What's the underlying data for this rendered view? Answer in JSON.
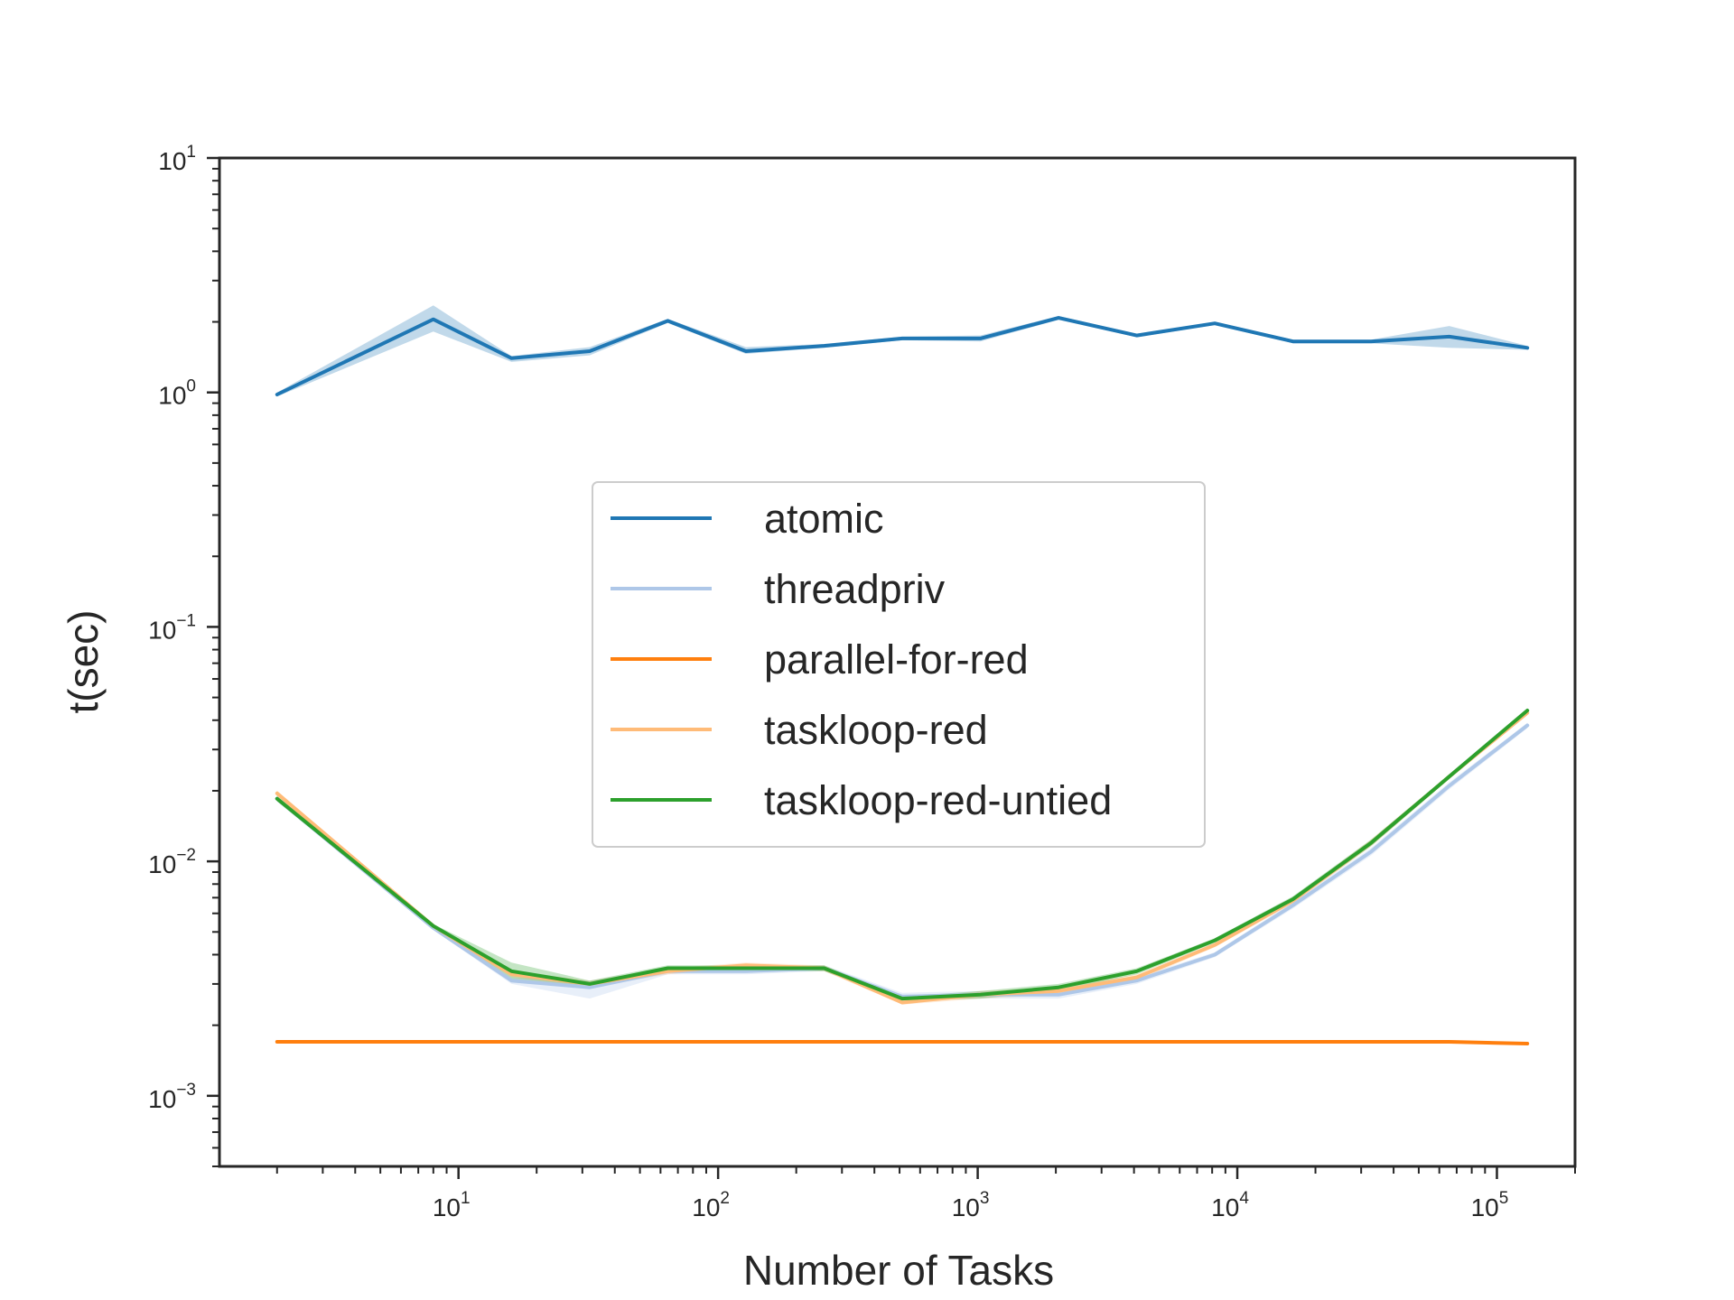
{
  "chart_data": {
    "type": "line",
    "xlabel": "Number of Tasks",
    "ylabel": "t(sec)",
    "xscale": "log",
    "yscale": "log",
    "xlim": [
      1.2,
      200000
    ],
    "ylim": [
      0.0005,
      10
    ],
    "x_ticks": [
      {
        "base": "10",
        "exp": "1",
        "value": 10
      },
      {
        "base": "10",
        "exp": "2",
        "value": 100
      },
      {
        "base": "10",
        "exp": "3",
        "value": 1000
      },
      {
        "base": "10",
        "exp": "4",
        "value": 10000
      },
      {
        "base": "10",
        "exp": "5",
        "value": 100000
      }
    ],
    "y_ticks": [
      {
        "base": "10",
        "exp": "1",
        "value": 10
      },
      {
        "base": "10",
        "exp": "0",
        "value": 1
      },
      {
        "base": "10",
        "exp": "−1",
        "value": 0.1
      },
      {
        "base": "10",
        "exp": "−2",
        "value": 0.01
      },
      {
        "base": "10",
        "exp": "−3",
        "value": 0.001
      }
    ],
    "grid": false,
    "legend_position": "center",
    "x": [
      2,
      8,
      16,
      32,
      64,
      128,
      256,
      512,
      1024,
      2048,
      4096,
      8192,
      16384,
      32768,
      65536,
      131072
    ],
    "series": [
      {
        "name": "atomic",
        "color": "#1f77b4",
        "values": [
          0.98,
          2.05,
          1.4,
          1.5,
          2.02,
          1.5,
          1.58,
          1.7,
          1.7,
          2.08,
          1.75,
          1.97,
          1.65,
          1.65,
          1.73,
          1.55
        ],
        "band_low": [
          0.96,
          1.82,
          1.35,
          1.44,
          1.98,
          1.46,
          1.55,
          1.67,
          1.65,
          2.04,
          1.72,
          1.94,
          1.62,
          1.62,
          1.55,
          1.52
        ],
        "band_high": [
          1.0,
          2.35,
          1.43,
          1.56,
          2.06,
          1.56,
          1.61,
          1.73,
          1.75,
          2.12,
          1.78,
          2.0,
          1.68,
          1.68,
          1.92,
          1.58
        ]
      },
      {
        "name": "threadpriv",
        "color": "#aec7e8",
        "values": [
          0.0185,
          0.0052,
          0.0031,
          0.0029,
          0.0034,
          0.0034,
          0.0035,
          0.00265,
          0.0027,
          0.0027,
          0.0031,
          0.004,
          0.0065,
          0.011,
          0.021,
          0.038
        ],
        "band_low": [
          0.018,
          0.0051,
          0.003,
          0.0026,
          0.0033,
          0.0033,
          0.0034,
          0.00255,
          0.0026,
          0.0026,
          0.003,
          0.0039,
          0.0063,
          0.0106,
          0.0203,
          0.037
        ],
        "band_high": [
          0.019,
          0.0053,
          0.0032,
          0.0031,
          0.0035,
          0.0035,
          0.0036,
          0.00275,
          0.0028,
          0.0028,
          0.0032,
          0.0041,
          0.0067,
          0.0114,
          0.0217,
          0.039
        ]
      },
      {
        "name": "parallel-for-red",
        "color": "#ff7f0e",
        "values": [
          0.0017,
          0.0017,
          0.0017,
          0.0017,
          0.0017,
          0.0017,
          0.0017,
          0.0017,
          0.0017,
          0.0017,
          0.0017,
          0.0017,
          0.0017,
          0.0017,
          0.0017,
          0.00167
        ],
        "band_low": [
          0.00169,
          0.00169,
          0.00169,
          0.00169,
          0.00169,
          0.00169,
          0.00169,
          0.00169,
          0.00169,
          0.00169,
          0.00169,
          0.00169,
          0.00169,
          0.00169,
          0.00169,
          0.00166
        ],
        "band_high": [
          0.00171,
          0.00171,
          0.00171,
          0.00171,
          0.00171,
          0.00171,
          0.00171,
          0.00171,
          0.00171,
          0.00171,
          0.00171,
          0.00171,
          0.00171,
          0.00171,
          0.00171,
          0.00168
        ]
      },
      {
        "name": "taskloop-red",
        "color": "#ffbb78",
        "values": [
          0.0195,
          0.0053,
          0.0033,
          0.003,
          0.0034,
          0.0036,
          0.0035,
          0.0025,
          0.0027,
          0.0028,
          0.0032,
          0.0044,
          0.0068,
          0.012,
          0.023,
          0.043
        ],
        "band_low": [
          0.019,
          0.0052,
          0.0032,
          0.0029,
          0.0033,
          0.0035,
          0.0034,
          0.00245,
          0.0026,
          0.0027,
          0.0031,
          0.0043,
          0.0066,
          0.0116,
          0.0225,
          0.042
        ],
        "band_high": [
          0.02,
          0.0054,
          0.0034,
          0.0031,
          0.0035,
          0.0037,
          0.0036,
          0.00255,
          0.0028,
          0.0029,
          0.0033,
          0.0045,
          0.007,
          0.0124,
          0.0235,
          0.044
        ]
      },
      {
        "name": "taskloop-red-untied",
        "color": "#2ca02c",
        "values": [
          0.0185,
          0.0053,
          0.0034,
          0.003,
          0.0035,
          0.0035,
          0.0035,
          0.0026,
          0.0027,
          0.0029,
          0.0034,
          0.0046,
          0.0069,
          0.012,
          0.023,
          0.044
        ],
        "band_low": [
          0.018,
          0.0052,
          0.0031,
          0.0029,
          0.0034,
          0.0034,
          0.0034,
          0.00255,
          0.0026,
          0.0028,
          0.0033,
          0.0045,
          0.0067,
          0.0116,
          0.0225,
          0.043
        ],
        "band_high": [
          0.019,
          0.0054,
          0.0037,
          0.0031,
          0.0036,
          0.0036,
          0.0036,
          0.00265,
          0.0028,
          0.003,
          0.0035,
          0.0047,
          0.0071,
          0.0124,
          0.0235,
          0.045
        ]
      }
    ]
  }
}
